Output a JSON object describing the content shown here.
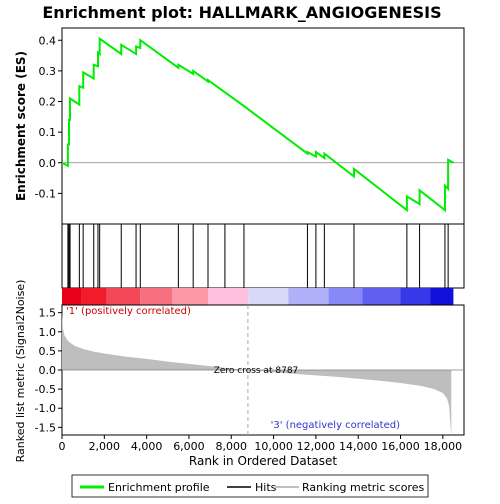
{
  "chart_data": {
    "type": "line",
    "title": "Enrichment plot: HALLMARK_ANGIOGENESIS",
    "xlabel": "Rank in Ordered Dataset",
    "top_ylabel": "Enrichment score (ES)",
    "bottom_ylabel": "Ranked list metric (Signal2Noise)",
    "xlim": [
      0,
      19000
    ],
    "x_ticks": [
      0,
      2000,
      4000,
      6000,
      8000,
      10000,
      12000,
      14000,
      16000,
      18000
    ],
    "x_tick_labels": [
      "0",
      "2,000",
      "4,000",
      "6,000",
      "8,000",
      "10,000",
      "12,000",
      "14,000",
      "16,000",
      "18,000"
    ],
    "es_ylim": [
      -0.2,
      0.44
    ],
    "es_ticks": [
      -0.1,
      0.0,
      0.1,
      0.2,
      0.3,
      0.4
    ],
    "es_tick_labels": [
      "-0.1",
      "0.0",
      "0.1",
      "0.2",
      "0.3",
      "0.4"
    ],
    "metric_ylim": [
      -1.7,
      1.7
    ],
    "metric_ticks": [
      -1.5,
      -1.0,
      -0.5,
      0.0,
      0.5,
      1.0,
      1.5
    ],
    "metric_tick_labels": [
      "-1.5",
      "-1.0",
      "-0.5",
      "0.0",
      "0.5",
      "1.0",
      "1.5"
    ],
    "hits": [
      280,
      330,
      380,
      820,
      1000,
      1500,
      1700,
      1780,
      2800,
      3500,
      3700,
      5500,
      6200,
      6900,
      7700,
      8600,
      11600,
      12000,
      12400,
      13800,
      16300,
      16900,
      18100,
      18250
    ],
    "es_curve": [
      [
        0,
        0.0
      ],
      [
        280,
        -0.01
      ],
      [
        280,
        0.06
      ],
      [
        330,
        0.06
      ],
      [
        330,
        0.14
      ],
      [
        380,
        0.14
      ],
      [
        380,
        0.21
      ],
      [
        820,
        0.19
      ],
      [
        820,
        0.25
      ],
      [
        1000,
        0.245
      ],
      [
        1000,
        0.295
      ],
      [
        1500,
        0.275
      ],
      [
        1500,
        0.32
      ],
      [
        1700,
        0.315
      ],
      [
        1700,
        0.36
      ],
      [
        1780,
        0.355
      ],
      [
        1780,
        0.405
      ],
      [
        2800,
        0.355
      ],
      [
        2800,
        0.385
      ],
      [
        3500,
        0.355
      ],
      [
        3500,
        0.38
      ],
      [
        3700,
        0.375
      ],
      [
        3700,
        0.4
      ],
      [
        5500,
        0.31
      ],
      [
        5500,
        0.32
      ],
      [
        6200,
        0.29
      ],
      [
        6200,
        0.3
      ],
      [
        6900,
        0.265
      ],
      [
        6900,
        0.27
      ],
      [
        7700,
        0.23
      ],
      [
        8600,
        0.185
      ],
      [
        11600,
        0.03
      ],
      [
        11600,
        0.035
      ],
      [
        12000,
        0.02
      ],
      [
        12000,
        0.035
      ],
      [
        12400,
        0.015
      ],
      [
        12400,
        0.03
      ],
      [
        13800,
        -0.045
      ],
      [
        13800,
        -0.02
      ],
      [
        16300,
        -0.155
      ],
      [
        16300,
        -0.11
      ],
      [
        16900,
        -0.135
      ],
      [
        16900,
        -0.09
      ],
      [
        18100,
        -0.155
      ],
      [
        18100,
        -0.075
      ],
      [
        18250,
        -0.085
      ],
      [
        18250,
        0.01
      ],
      [
        18500,
        0.0
      ]
    ],
    "metric_curve": [
      [
        0,
        1.52
      ],
      [
        40,
        1.1
      ],
      [
        120,
        0.9
      ],
      [
        300,
        0.75
      ],
      [
        600,
        0.63
      ],
      [
        1000,
        0.55
      ],
      [
        1500,
        0.48
      ],
      [
        2000,
        0.43
      ],
      [
        3000,
        0.35
      ],
      [
        4000,
        0.29
      ],
      [
        5000,
        0.22
      ],
      [
        6000,
        0.16
      ],
      [
        7000,
        0.1
      ],
      [
        8000,
        0.04
      ],
      [
        8787,
        0.0
      ],
      [
        10000,
        -0.06
      ],
      [
        11000,
        -0.1
      ],
      [
        12000,
        -0.14
      ],
      [
        13000,
        -0.18
      ],
      [
        14000,
        -0.23
      ],
      [
        15000,
        -0.28
      ],
      [
        16000,
        -0.34
      ],
      [
        17000,
        -0.42
      ],
      [
        17600,
        -0.5
      ],
      [
        18000,
        -0.6
      ],
      [
        18200,
        -0.75
      ],
      [
        18300,
        -0.95
      ],
      [
        18400,
        -1.75
      ]
    ],
    "zero_cross_x": 8787,
    "zero_cross_label": "Zero cross at 8787",
    "pos_label": "'1' (positively correlated)",
    "neg_label": "'3' (negatively correlated)",
    "legend": [
      {
        "name": "Enrichment profile",
        "color": "#00ee00"
      },
      {
        "name": "Hits",
        "color": "#000000"
      },
      {
        "name": "Ranking metric scores",
        "color": "#c0c0c0"
      }
    ],
    "colors": {
      "es_line": "#00ee00",
      "metric_fill": "#bebebe",
      "neg_label": "#3333cc",
      "pos_label": "#cc0000"
    },
    "color_bar": [
      {
        "from": 0,
        "to": 900,
        "color": "#e8001a"
      },
      {
        "from": 900,
        "to": 2100,
        "color": "#f01c2c"
      },
      {
        "from": 2100,
        "to": 3700,
        "color": "#f44858"
      },
      {
        "from": 3700,
        "to": 5200,
        "color": "#f87080"
      },
      {
        "from": 5200,
        "to": 6900,
        "color": "#fc98a8"
      },
      {
        "from": 6900,
        "to": 8800,
        "color": "#ffc0e0"
      },
      {
        "from": 8800,
        "to": 10700,
        "color": "#d8d8f8"
      },
      {
        "from": 10700,
        "to": 12600,
        "color": "#b0b0f8"
      },
      {
        "from": 12600,
        "to": 14200,
        "color": "#8888f8"
      },
      {
        "from": 14200,
        "to": 16000,
        "color": "#6060f0"
      },
      {
        "from": 16000,
        "to": 17400,
        "color": "#3838e8"
      },
      {
        "from": 17400,
        "to": 18500,
        "color": "#1010d8"
      }
    ]
  }
}
